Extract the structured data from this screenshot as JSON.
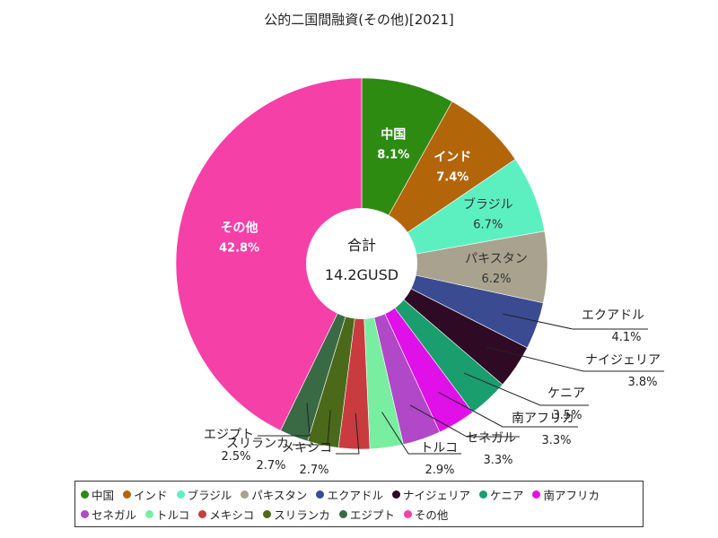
{
  "chart_data": {
    "type": "pie",
    "title": "公的二国間融資(その他)[2021]",
    "center_label": "合計",
    "center_value": "14.2GUSD",
    "slices": [
      {
        "name": "中国",
        "value": 8.1,
        "pct": "8.1%",
        "color": "#2e8b12"
      },
      {
        "name": "インド",
        "value": 7.4,
        "pct": "7.4%",
        "color": "#b3650a"
      },
      {
        "name": "ブラジル",
        "value": 6.7,
        "pct": "6.7%",
        "color": "#5cf0c0"
      },
      {
        "name": "パキスタン",
        "value": 6.2,
        "pct": "6.2%",
        "color": "#a8a28e"
      },
      {
        "name": "エクアドル",
        "value": 4.1,
        "pct": "4.1%",
        "color": "#3b4b92"
      },
      {
        "name": "ナイジェリア",
        "value": 3.8,
        "pct": "3.8%",
        "color": "#2e0a24"
      },
      {
        "name": "ケニア",
        "value": 3.5,
        "pct": "3.5%",
        "color": "#1a9e6e"
      },
      {
        "name": "南アフリカ",
        "value": 3.3,
        "pct": "3.3%",
        "color": "#e010e8"
      },
      {
        "name": "セネガル",
        "value": 3.3,
        "pct": "3.3%",
        "color": "#b048c8"
      },
      {
        "name": "トルコ",
        "value": 2.9,
        "pct": "2.9%",
        "color": "#7aeea0"
      },
      {
        "name": "メキシコ",
        "value": 2.7,
        "pct": "2.7%",
        "color": "#c83c40"
      },
      {
        "name": "スリランカ",
        "value": 2.7,
        "pct": "2.7%",
        "color": "#4a6a1a"
      },
      {
        "name": "エジプト",
        "value": 2.5,
        "pct": "2.5%",
        "color": "#3a6a44"
      },
      {
        "name": "その他",
        "value": 42.8,
        "pct": "42.8%",
        "color": "#f540a8"
      }
    ],
    "legend_rows": [
      [
        "中国",
        "インド",
        "ブラジル",
        "パキスタン",
        "エクアドル",
        "ナイジェリア",
        "ケニア",
        "南アフリカ"
      ],
      [
        "セネガル",
        "トルコ",
        "メキシコ",
        "スリランカ",
        "エジプト",
        "その他"
      ]
    ]
  }
}
